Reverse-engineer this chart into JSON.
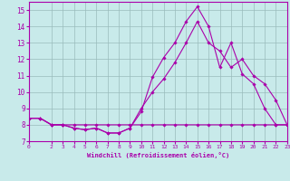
{
  "background_color": "#c8eaea",
  "line_color": "#aa00aa",
  "grid_color": "#99bbbb",
  "xlabel": "Windchill (Refroidissement éolien,°C)",
  "xlim": [
    0,
    23
  ],
  "ylim": [
    7,
    15.5
  ],
  "yticks": [
    7,
    8,
    9,
    10,
    11,
    12,
    13,
    14,
    15
  ],
  "xticks": [
    0,
    2,
    3,
    4,
    5,
    6,
    7,
    8,
    9,
    10,
    11,
    12,
    13,
    14,
    15,
    16,
    17,
    18,
    19,
    20,
    21,
    22,
    23
  ],
  "series": [
    {
      "x": [
        0,
        1,
        2,
        3,
        4,
        5,
        6,
        7,
        8,
        9,
        10,
        11,
        12,
        13,
        14,
        15,
        16,
        17,
        18,
        19,
        20,
        21,
        22,
        23
      ],
      "y": [
        8.4,
        8.4,
        8.0,
        8.0,
        7.8,
        7.7,
        7.8,
        7.5,
        7.5,
        7.8,
        8.8,
        10.9,
        12.1,
        13.0,
        14.3,
        15.2,
        14.0,
        11.5,
        13.0,
        11.1,
        10.5,
        9.0,
        8.0,
        8.0
      ]
    },
    {
      "x": [
        0,
        1,
        2,
        3,
        4,
        5,
        6,
        7,
        8,
        9,
        10,
        11,
        12,
        13,
        14,
        15,
        16,
        17,
        18,
        19,
        20,
        21,
        22,
        23
      ],
      "y": [
        8.4,
        8.4,
        8.0,
        8.0,
        7.8,
        7.7,
        7.8,
        7.5,
        7.5,
        7.8,
        9.0,
        10.0,
        10.8,
        11.8,
        13.0,
        14.3,
        13.0,
        12.5,
        11.5,
        12.0,
        11.0,
        10.5,
        9.5,
        8.0
      ]
    },
    {
      "x": [
        0,
        1,
        2,
        3,
        4,
        5,
        6,
        7,
        8,
        9,
        10,
        11,
        12,
        13,
        14,
        15,
        16,
        17,
        18,
        19,
        20,
        21,
        22,
        23
      ],
      "y": [
        8.4,
        8.4,
        8.0,
        8.0,
        8.0,
        8.0,
        8.0,
        8.0,
        8.0,
        8.0,
        8.0,
        8.0,
        8.0,
        8.0,
        8.0,
        8.0,
        8.0,
        8.0,
        8.0,
        8.0,
        8.0,
        8.0,
        8.0,
        8.0
      ]
    }
  ]
}
